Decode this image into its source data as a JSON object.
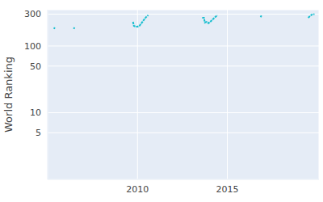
{
  "chart_data": {
    "type": "line",
    "y_label": "World Ranking",
    "x": [
      2005.35,
      2005.4,
      2005.9,
      2006.45,
      2006.5,
      2008.0,
      2009.75,
      2009.8,
      2009.9,
      2010.0,
      2010.1,
      2010.2,
      2010.3,
      2010.4,
      2010.5,
      2010.6,
      2012.0,
      2013.6,
      2013.7,
      2013.75,
      2013.85,
      2013.95,
      2014.05,
      2014.15,
      2014.25,
      2014.35,
      2014.45,
      2015.5,
      2016.85,
      2016.9,
      2018.0,
      2019.5,
      2019.6,
      2019.7,
      2019.85
    ],
    "values": [
      180,
      190,
      null,
      180,
      190,
      null,
      230,
      200,
      195,
      195,
      200,
      215,
      235,
      255,
      275,
      290,
      null,
      265,
      265,
      225,
      230,
      220,
      230,
      245,
      260,
      275,
      290,
      null,
      270,
      285,
      null,
      265,
      280,
      295,
      300
    ],
    "color": "#17becf",
    "xlim": [
      2005,
      2020.1
    ],
    "xticks": [
      2010,
      2015
    ],
    "ylim": [
      1,
      350
    ],
    "yticks": [
      5,
      10,
      50,
      100,
      300
    ],
    "log": "y",
    "grid": true
  }
}
